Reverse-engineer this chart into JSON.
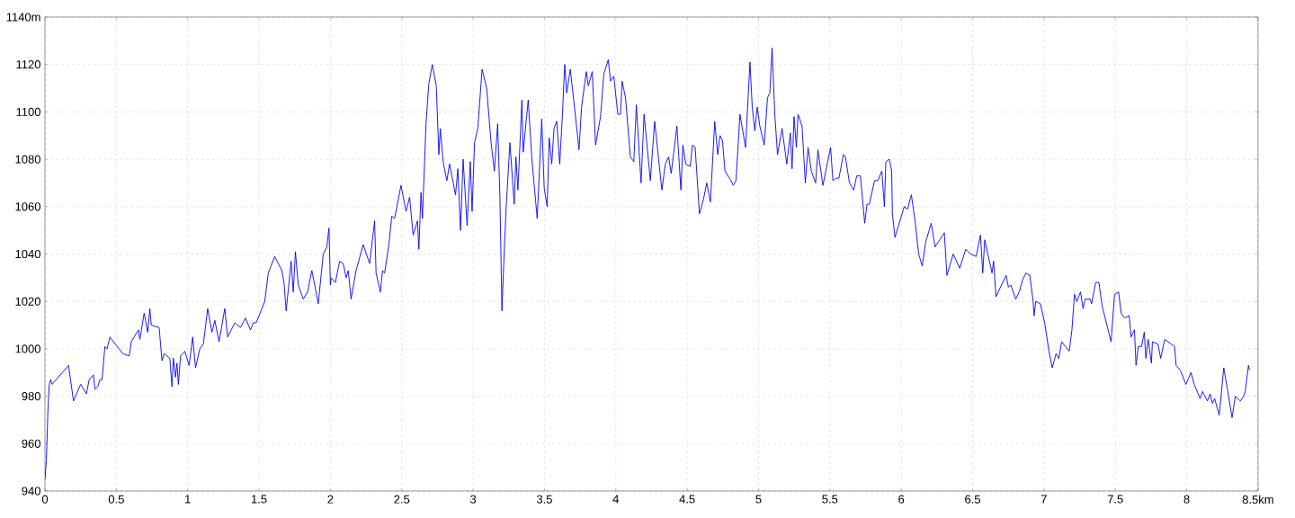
{
  "chart_data": {
    "type": "line",
    "x": [
      0,
      0.01,
      0.02,
      0.03,
      0.04,
      0.05,
      0.165,
      0.2,
      0.25,
      0.29,
      0.31,
      0.34,
      0.35,
      0.37,
      0.385,
      0.4,
      0.42,
      0.435,
      0.455,
      0.545,
      0.59,
      0.605,
      0.655,
      0.665,
      0.695,
      0.72,
      0.735,
      0.745,
      0.8,
      0.82,
      0.835,
      0.875,
      0.89,
      0.9,
      0.915,
      0.925,
      0.935,
      0.95,
      0.98,
      1.01,
      1.035,
      1.055,
      1.085,
      1.11,
      1.14,
      1.17,
      1.19,
      1.22,
      1.26,
      1.28,
      1.33,
      1.37,
      1.405,
      1.44,
      1.46,
      1.48,
      1.54,
      1.565,
      1.61,
      1.66,
      1.675,
      1.69,
      1.725,
      1.74,
      1.755,
      1.775,
      1.81,
      1.84,
      1.87,
      1.89,
      1.915,
      1.95,
      1.975,
      1.99,
      2.0,
      2.005,
      2.035,
      2.065,
      2.09,
      2.11,
      2.125,
      2.145,
      2.18,
      2.23,
      2.275,
      2.31,
      2.32,
      2.35,
      2.365,
      2.38,
      2.41,
      2.43,
      2.45,
      2.495,
      2.53,
      2.555,
      2.58,
      2.61,
      2.62,
      2.635,
      2.645,
      2.67,
      2.69,
      2.714,
      2.742,
      2.76,
      2.77,
      2.79,
      2.816,
      2.835,
      2.877,
      2.893,
      2.912,
      2.93,
      2.958,
      2.98,
      2.993,
      3.01,
      3.033,
      3.063,
      3.095,
      3.126,
      3.149,
      3.172,
      3.188,
      3.202,
      3.212,
      3.23,
      3.258,
      3.288,
      3.3,
      3.314,
      3.342,
      3.351,
      3.386,
      3.412,
      3.449,
      3.481,
      3.498,
      3.519,
      3.533,
      3.551,
      3.567,
      3.586,
      3.607,
      3.626,
      3.642,
      3.656,
      3.681,
      3.714,
      3.742,
      3.76,
      3.793,
      3.807,
      3.835,
      3.858,
      3.893,
      3.916,
      3.947,
      3.963,
      3.986,
      4.014,
      4.033,
      4.044,
      4.068,
      4.102,
      4.126,
      4.144,
      4.177,
      4.198,
      4.242,
      4.272,
      4.3,
      4.323,
      4.347,
      4.37,
      4.388,
      4.428,
      4.456,
      4.47,
      4.49,
      4.521,
      4.537,
      4.556,
      4.586,
      4.614,
      4.637,
      4.663,
      4.693,
      4.714,
      4.73,
      4.747,
      4.765,
      4.807,
      4.823,
      4.842,
      4.87,
      4.909,
      4.94,
      4.956,
      4.974,
      4.991,
      5.009,
      5.04,
      5.063,
      5.079,
      5.095,
      5.114,
      5.133,
      5.165,
      5.198,
      5.223,
      5.235,
      5.249,
      5.265,
      5.277,
      5.305,
      5.328,
      5.347,
      5.37,
      5.4,
      5.416,
      5.451,
      5.505,
      5.521,
      5.544,
      5.563,
      5.595,
      5.609,
      5.637,
      5.667,
      5.688,
      5.714,
      5.744,
      5.76,
      5.776,
      5.813,
      5.836,
      5.864,
      5.882,
      5.892,
      5.917,
      5.933,
      5.938,
      5.956,
      6.021,
      6.044,
      6.071,
      6.099,
      6.122,
      6.147,
      6.171,
      6.21,
      6.237,
      6.302,
      6.32,
      6.364,
      6.41,
      6.452,
      6.486,
      6.525,
      6.555,
      6.571,
      6.585,
      6.636,
      6.647,
      6.664,
      6.735,
      6.751,
      6.767,
      6.802,
      6.827,
      6.85,
      6.873,
      6.901,
      6.924,
      6.931,
      6.942,
      6.975,
      7.005,
      7.035,
      7.058,
      7.085,
      7.104,
      7.124,
      7.177,
      7.196,
      7.214,
      7.23,
      7.256,
      7.274,
      7.288,
      7.323,
      7.334,
      7.362,
      7.385,
      7.408,
      7.47,
      7.495,
      7.523,
      7.541,
      7.565,
      7.597,
      7.611,
      7.634,
      7.645,
      7.661,
      7.684,
      7.703,
      7.714,
      7.73,
      7.753,
      7.76,
      7.799,
      7.818,
      7.846,
      7.915,
      7.926,
      7.956,
      7.995,
      8.03,
      8.053,
      8.094,
      8.111,
      8.145,
      8.164,
      8.18,
      8.196,
      8.228,
      8.26,
      8.288,
      8.318,
      8.341,
      8.376,
      8.399,
      8.41,
      8.433,
      8.44
    ],
    "values": [
      945,
      953,
      973,
      985,
      987,
      985,
      993,
      978,
      985,
      981,
      987,
      989,
      983,
      984,
      987,
      987,
      1001,
      1000,
      1005,
      998,
      997,
      1003,
      1008,
      1004,
      1015,
      1007,
      1017,
      1010,
      1009,
      995,
      998,
      996,
      984,
      996,
      988,
      994,
      985,
      997,
      999,
      993,
      1005,
      992,
      1000,
      1002,
      1017,
      1007,
      1012,
      1003,
      1017,
      1005,
      1011,
      1009,
      1013,
      1008,
      1011,
      1011,
      1020,
      1032,
      1039,
      1033,
      1028,
      1016,
      1037,
      1024,
      1041,
      1027,
      1021,
      1024,
      1033,
      1027,
      1019,
      1040,
      1043,
      1051,
      1027,
      1030,
      1028,
      1037,
      1036,
      1030,
      1033,
      1021,
      1033,
      1044,
      1036,
      1054,
      1032,
      1024,
      1033,
      1032,
      1044,
      1056,
      1055,
      1069,
      1058,
      1064,
      1048,
      1054,
      1042,
      1066,
      1055,
      1095,
      1112,
      1120,
      1111,
      1082,
      1093,
      1079,
      1071,
      1078,
      1065,
      1076,
      1050,
      1080,
      1052,
      1079,
      1058,
      1087,
      1093,
      1118,
      1110,
      1087,
      1075,
      1095,
      1064,
      1016,
      1032,
      1058,
      1087,
      1061,
      1081,
      1067,
      1105,
      1083,
      1105,
      1080,
      1055,
      1097,
      1068,
      1060,
      1089,
      1078,
      1093,
      1096,
      1078,
      1099,
      1120,
      1108,
      1118,
      1100,
      1084,
      1102,
      1117,
      1111,
      1117,
      1086,
      1098,
      1116,
      1122,
      1113,
      1115,
      1099,
      1099,
      1113,
      1106,
      1081,
      1079,
      1103,
      1070,
      1099,
      1071,
      1096,
      1080,
      1067,
      1078,
      1081,
      1074,
      1094,
      1067,
      1086,
      1078,
      1077,
      1086,
      1085,
      1057,
      1063,
      1070,
      1062,
      1096,
      1082,
      1090,
      1088,
      1075,
      1071,
      1069,
      1071,
      1099,
      1085,
      1121,
      1102,
      1092,
      1102,
      1094,
      1086,
      1106,
      1108,
      1127,
      1099,
      1082,
      1093,
      1078,
      1091,
      1076,
      1098,
      1085,
      1099,
      1094,
      1070,
      1085,
      1075,
      1070,
      1084,
      1069,
      1085,
      1071,
      1072,
      1072,
      1082,
      1081,
      1070,
      1067,
      1073,
      1073,
      1053,
      1061,
      1061,
      1071,
      1071,
      1075,
      1060,
      1079,
      1080,
      1075,
      1057,
      1047,
      1060,
      1059,
      1065,
      1053,
      1040,
      1035,
      1045,
      1053,
      1043,
      1049,
      1031,
      1040,
      1034,
      1042,
      1040,
      1039,
      1048,
      1032,
      1046,
      1032,
      1037,
      1022,
      1031,
      1026,
      1027,
      1021,
      1024,
      1029,
      1032,
      1031,
      1020,
      1014,
      1020,
      1019,
      1011,
      999,
      992,
      998,
      996,
      1003,
      999,
      1008,
      1023,
      1020,
      1024,
      1017,
      1021,
      1021,
      1019,
      1028,
      1028,
      1018,
      1003,
      1023,
      1024,
      1015,
      1013,
      1014,
      1005,
      1008,
      993,
      1001,
      1001,
      1007,
      996,
      1004,
      994,
      1003,
      1002,
      996,
      1004,
      1001,
      993,
      991,
      985,
      990,
      985,
      979,
      982,
      978,
      981,
      977,
      979,
      972,
      992,
      982,
      971,
      980,
      978,
      980,
      982,
      993,
      991
    ],
    "color": "#0000ff",
    "xlim": [
      0,
      8.5
    ],
    "ylim": [
      940,
      1140
    ],
    "xticks": [
      0,
      0.5,
      1,
      1.5,
      2,
      2.5,
      3,
      3.5,
      4,
      4.5,
      5,
      5.5,
      6,
      6.5,
      7,
      7.5,
      8,
      {
        "value": 8.5,
        "label": "8.5km"
      }
    ],
    "yticks": [
      940,
      960,
      980,
      1000,
      1020,
      1040,
      1060,
      1080,
      1100,
      1120,
      {
        "value": 1140,
        "label": "1140m"
      }
    ],
    "grid": true
  }
}
